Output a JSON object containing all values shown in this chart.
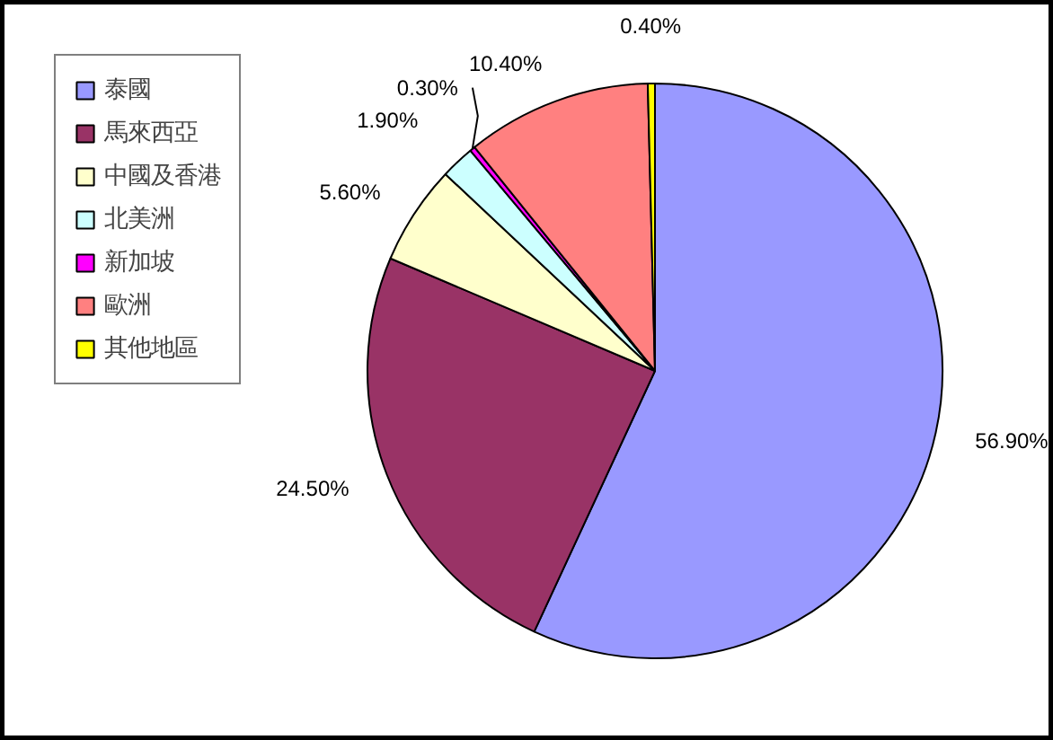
{
  "chart_data": {
    "type": "pie",
    "categories": [
      "泰國",
      "馬來西亞",
      "中國及香港",
      "北美洲",
      "新加坡",
      "歐洲",
      "其他地區"
    ],
    "values": [
      56.9,
      24.5,
      5.6,
      1.9,
      0.3,
      10.4,
      0.4
    ],
    "colors": [
      "#9999ff",
      "#993366",
      "#ffffcc",
      "#ccffff",
      "#ff00ff",
      "#ff8080",
      "#ffff00"
    ],
    "value_labels": [
      "56.90%",
      "24.50%",
      "5.60%",
      "1.90%",
      "0.30%",
      "10.40%",
      "0.40%"
    ],
    "legend": "left"
  }
}
